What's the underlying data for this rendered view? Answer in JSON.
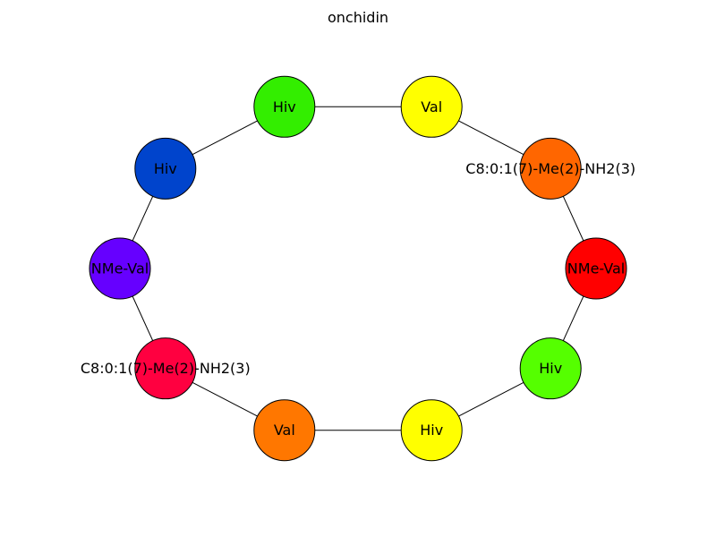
{
  "title": "onchidin",
  "nodes": [
    {
      "label": "Hiv",
      "color": "#33ee00"
    },
    {
      "label": "Val",
      "color": "#ffff00"
    },
    {
      "label": "C8:0:1(7)-Me(2)-NH2(3)",
      "color": "#ff6600"
    },
    {
      "label": "NMe-Val",
      "color": "#ff0000"
    },
    {
      "label": "Hiv",
      "color": "#55ff00"
    },
    {
      "label": "Hiv",
      "color": "#ffff00"
    },
    {
      "label": "Val",
      "color": "#ff7700"
    },
    {
      "label": "C8:0:1(7)-Me(2)-NH2(3)",
      "color": "#ff0040"
    },
    {
      "label": "NMe-Val",
      "color": "#6600ff"
    },
    {
      "label": "Hiv",
      "color": "#0044cc"
    }
  ],
  "edges": [
    [
      0,
      1
    ],
    [
      1,
      2
    ],
    [
      2,
      3
    ],
    [
      3,
      4
    ],
    [
      4,
      5
    ],
    [
      5,
      6
    ],
    [
      6,
      7
    ],
    [
      7,
      8
    ],
    [
      8,
      9
    ],
    [
      9,
      0
    ]
  ]
}
